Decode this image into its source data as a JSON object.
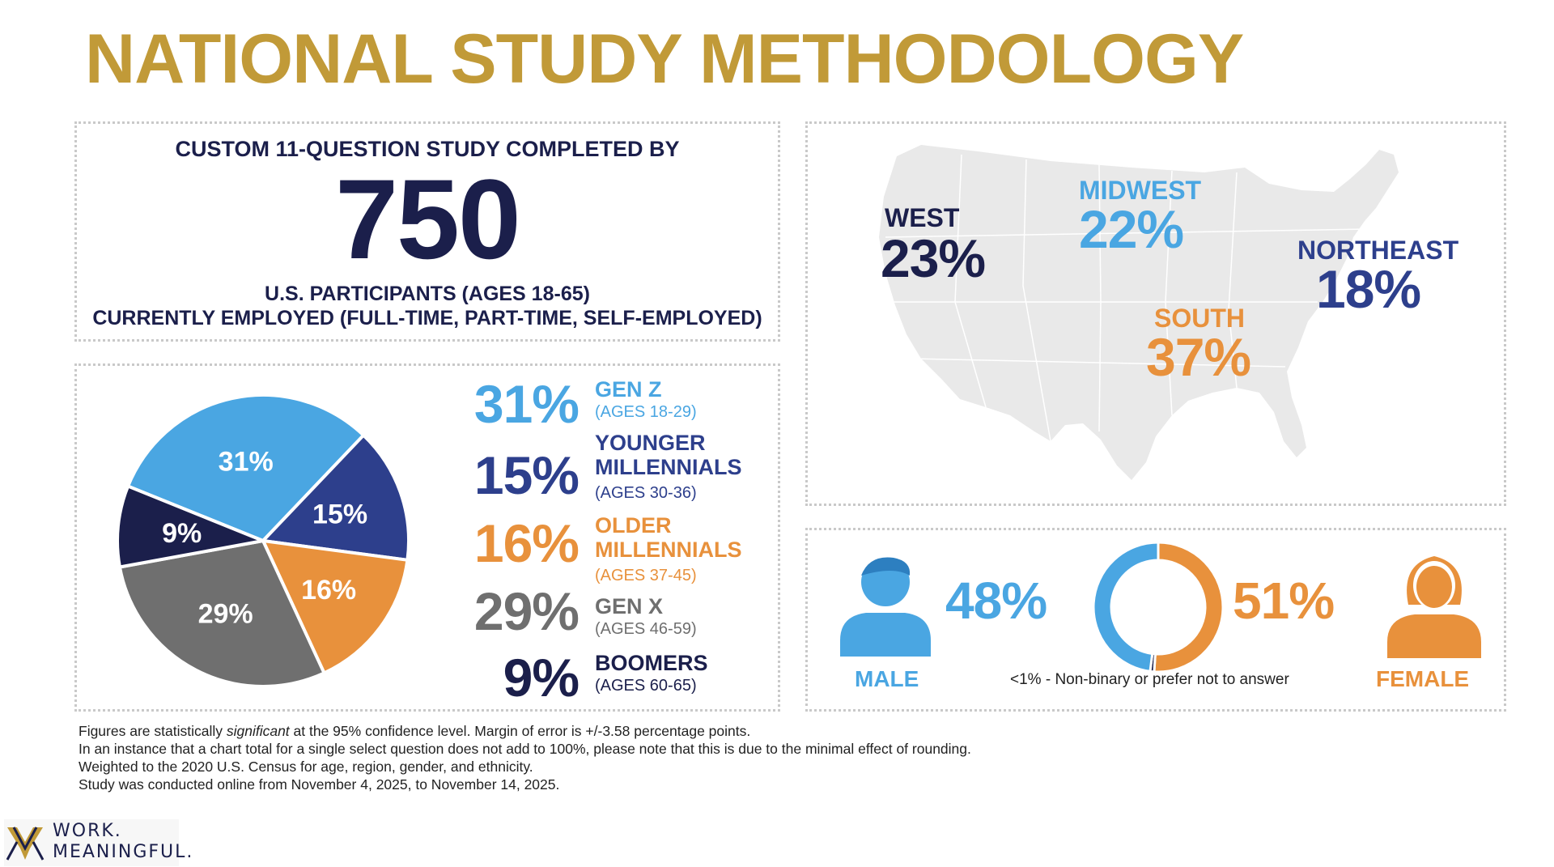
{
  "title": "NATIONAL STUDY METHODOLOGY",
  "participants": {
    "lead": "CUSTOM 11-QUESTION STUDY COMPLETED BY",
    "count": "750",
    "line1": "U.S. PARTICIPANTS (AGES 18-65)",
    "line2": "CURRENTLY EMPLOYED (FULL-TIME, PART-TIME, SELF-EMPLOYED)"
  },
  "chart_data": [
    {
      "type": "pie",
      "categories": [
        "GEN Z",
        "YOUNGER MILLENNIALS",
        "OLDER MILLENNIALS",
        "GEN X",
        "BOOMERS"
      ],
      "values": [
        31,
        15,
        16,
        29,
        9
      ],
      "colors": [
        "#4aa6e2",
        "#2d3f8c",
        "#e8913c",
        "#6f6f6f",
        "#1b1f4b"
      ],
      "slice_labels": [
        "31%",
        "15%",
        "16%",
        "29%",
        "9%"
      ],
      "legend": [
        {
          "pct": "31%",
          "name": "GEN Z",
          "ages": "(AGES 18-29)",
          "color": "#4aa6e2"
        },
        {
          "pct": "15%",
          "name": "YOUNGER MILLENNIALS",
          "ages": "(AGES 30-36)",
          "color": "#2d3f8c"
        },
        {
          "pct": "16%",
          "name": "OLDER MILLENNIALS",
          "ages": "(AGES 37-45)",
          "color": "#e8913c"
        },
        {
          "pct": "29%",
          "name": "GEN X",
          "ages": "(AGES 46-59)",
          "color": "#6f6f6f"
        },
        {
          "pct": "9%",
          "name": "BOOMERS",
          "ages": "(AGES 60-65)",
          "color": "#1b1f4b"
        }
      ]
    },
    {
      "type": "map",
      "categories": [
        "WEST",
        "MIDWEST",
        "NORTHEAST",
        "SOUTH"
      ],
      "values": [
        23,
        22,
        18,
        37
      ],
      "labels": [
        "23%",
        "22%",
        "18%",
        "37%"
      ],
      "name_colors": [
        "#1b1f4b",
        "#4aa6e2",
        "#2d3f8c",
        "#e8913c"
      ]
    },
    {
      "type": "donut",
      "categories": [
        "MALE",
        "FEMALE",
        "Non-binary or prefer not to answer"
      ],
      "values": [
        48,
        51,
        1
      ],
      "labels": [
        "48%",
        "51%",
        "<1% - Non-binary or prefer not to answer"
      ],
      "colors": [
        "#4aa6e2",
        "#e8913c",
        "#1b1f4b"
      ]
    }
  ],
  "footnotes": {
    "line1_a": "Figures are statistically ",
    "line1_b": "significant",
    "line1_c": " at the 95% confidence level. Margin of error is +/-3.58 percentage points.",
    "line2": "In an instance that a chart total for a single select question does not add to 100%, please note that this is due to the minimal effect of rounding.",
    "line3": "Weighted to the 2020 U.S. Census for age, region, gender, and ethnicity.",
    "line4": "Study was conducted online from November 4, 2025, to November 14, 2025."
  },
  "logo": {
    "line1": "WORK.",
    "line2": "MEANINGFUL."
  },
  "colors": {
    "gold": "#c19a38",
    "navy": "#1b1f4b",
    "blue": "#4aa6e2",
    "royal": "#2d3f8c",
    "orange": "#e8913c",
    "gray": "#6f6f6f",
    "map": "#e9e9e9"
  }
}
